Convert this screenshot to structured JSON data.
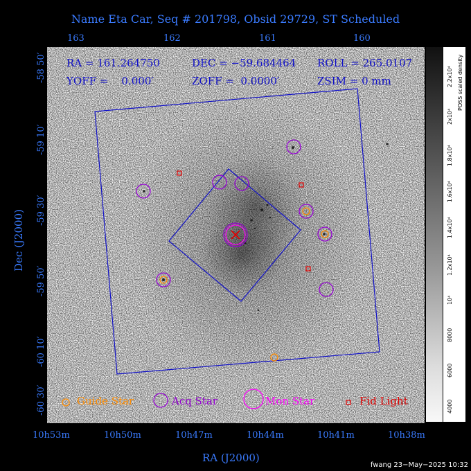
{
  "title": "Name Eta Car, Seq # 201798, Obsid 29729, ST Scheduled",
  "info": {
    "ra": "RA = 161.264750",
    "dec": "DEC = −59.684464",
    "roll": "ROLL = 265.0107",
    "yoff": "YOFF =    0.000′",
    "zoff": "ZOFF =  0.0000′",
    "zsim": "ZSIM = 0 mm"
  },
  "axes": {
    "x_label": "RA (J2000)",
    "y_label": "Dec (J2000)",
    "top_ticks": [
      "163",
      "162",
      "161",
      "160"
    ],
    "bottom_ticks": [
      "10h53m",
      "10h50m",
      "10h47m",
      "10h44m",
      "10h41m",
      "10h38m"
    ],
    "left_ticks": [
      "-58 50′",
      "-59 10′",
      "-59 30′",
      "-59 50′",
      "-60 10′",
      "-60 30′"
    ]
  },
  "colorbar": {
    "title": "POSS scaled density",
    "ticks": [
      "4000",
      "6000",
      "8000",
      "10⁴",
      "1.2x10⁴",
      "1.4x10⁴",
      "1.6x10⁴",
      "1.8x10⁴",
      "2x10⁴",
      "2.2x10⁴"
    ]
  },
  "legend": {
    "guide": "Guide Star",
    "acq": "Acq Star",
    "mon": "Mon Star",
    "fid": "Fid Light"
  },
  "colors": {
    "axis": "#3a7bff",
    "guide": "#ff8c00",
    "acq": "#9400d3",
    "mon": "#ff00ff",
    "fid": "#e00000",
    "field": "#1010c8"
  },
  "footer": "fwang 23−May−2025 10:32"
}
